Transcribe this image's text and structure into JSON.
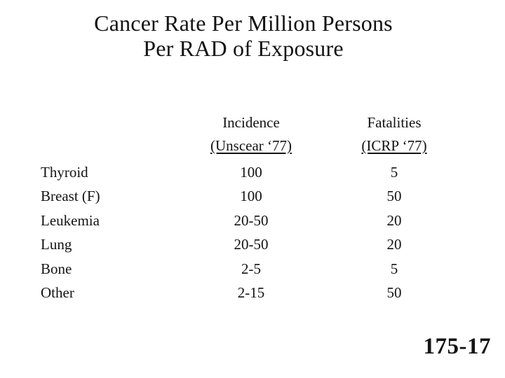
{
  "slide": {
    "title_line1": "Cancer Rate Per Million Persons",
    "title_line2": "Per RAD of Exposure",
    "page_number": "175-17"
  },
  "table": {
    "columns": [
      {
        "name_line1": "Incidence",
        "name_line2": "(Unscear ‘77)"
      },
      {
        "name_line1": "Fatalities",
        "name_line2": "(ICRP ‘77)"
      }
    ],
    "rows": [
      {
        "organ": "Thyroid",
        "incidence": "100",
        "fatalities": "5"
      },
      {
        "organ": "Breast (F)",
        "incidence": "100",
        "fatalities": "50"
      },
      {
        "organ": "Leukemia",
        "incidence": "20-50",
        "fatalities": "20"
      },
      {
        "organ": "Lung",
        "incidence": "20-50",
        "fatalities": "20"
      },
      {
        "organ": "Bone",
        "incidence": "2-5",
        "fatalities": "5"
      },
      {
        "organ": "Other",
        "incidence": "2-15",
        "fatalities": "50"
      }
    ]
  },
  "colors": {
    "background": "#ffffff",
    "text": "#131313"
  }
}
